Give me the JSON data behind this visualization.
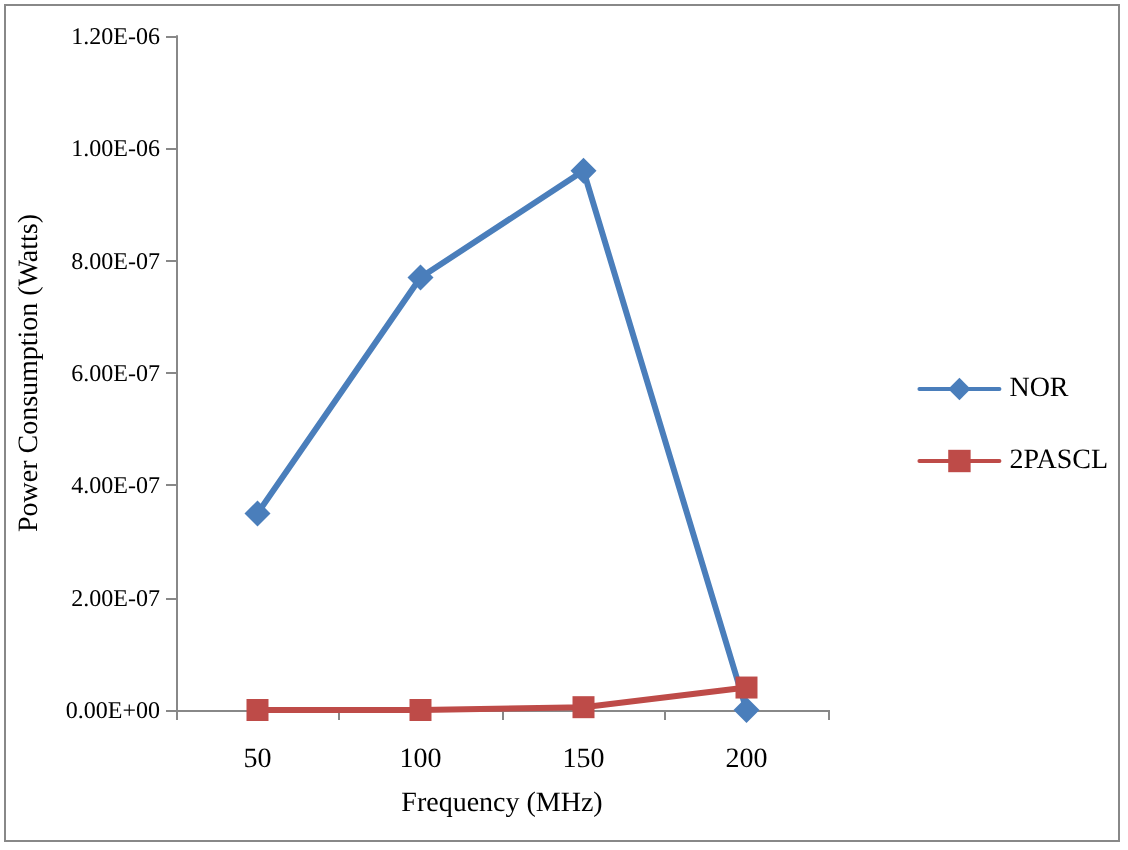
{
  "chart_data": {
    "type": "line",
    "xlabel": "Frequency (MHz)",
    "ylabel": "Power Consumption (Watts)",
    "categories": [
      "50",
      "100",
      "150",
      "200"
    ],
    "series": [
      {
        "name": "NOR",
        "color": "#4a7ebb",
        "values": [
          3.5e-07,
          7.7e-07,
          9.6e-07,
          0
        ],
        "marker": "diamond"
      },
      {
        "name": "2PASCL",
        "color": "#be4b48",
        "values": [
          0,
          0,
          5e-09,
          4e-08
        ],
        "marker": "square"
      }
    ],
    "ylim": [
      0,
      1.2e-06
    ],
    "yticks": [
      {
        "value": 0,
        "label": "0.00E+00"
      },
      {
        "value": 2e-07,
        "label": "2.00E-07"
      },
      {
        "value": 4e-07,
        "label": "4.00E-07"
      },
      {
        "value": 6e-07,
        "label": "6.00E-07"
      },
      {
        "value": 8e-07,
        "label": "8.00E-07"
      },
      {
        "value": 1e-06,
        "label": "1.00E-06"
      },
      {
        "value": 1.2e-06,
        "label": "1.20E-06"
      }
    ],
    "grid": false,
    "legend": "right",
    "line_style": "solid"
  }
}
